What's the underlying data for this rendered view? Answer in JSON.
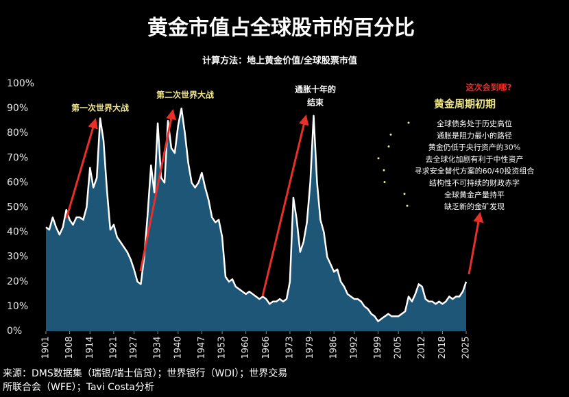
{
  "chart_data": {
    "type": "area",
    "title": "黄金市值占全球股市的百分比",
    "subtitle": "计算方法：地上黄金价值/全球股票市值",
    "x": [
      1901,
      1902,
      1903,
      1904,
      1905,
      1906,
      1907,
      1908,
      1909,
      1910,
      1911,
      1912,
      1913,
      1914,
      1915,
      1916,
      1917,
      1918,
      1919,
      1920,
      1921,
      1922,
      1923,
      1924,
      1925,
      1926,
      1927,
      1928,
      1929,
      1930,
      1931,
      1932,
      1933,
      1934,
      1935,
      1936,
      1937,
      1938,
      1939,
      1940,
      1941,
      1942,
      1943,
      1944,
      1945,
      1946,
      1947,
      1948,
      1949,
      1950,
      1951,
      1952,
      1953,
      1954,
      1955,
      1956,
      1957,
      1958,
      1959,
      1960,
      1961,
      1962,
      1963,
      1964,
      1965,
      1966,
      1967,
      1968,
      1969,
      1970,
      1971,
      1972,
      1973,
      1974,
      1975,
      1976,
      1977,
      1978,
      1979,
      1980,
      1981,
      1982,
      1983,
      1984,
      1985,
      1986,
      1987,
      1988,
      1989,
      1990,
      1991,
      1992,
      1993,
      1994,
      1995,
      1996,
      1997,
      1998,
      1999,
      2000,
      2001,
      2002,
      2003,
      2004,
      2005,
      2006,
      2007,
      2008,
      2009,
      2010,
      2011,
      2012,
      2013,
      2014,
      2015,
      2016,
      2017,
      2018,
      2019,
      2020,
      2021,
      2022,
      2023,
      2024,
      2025
    ],
    "values": [
      42,
      41,
      46,
      42,
      39,
      42,
      49,
      45,
      43,
      46,
      46,
      45,
      50,
      66,
      58,
      62,
      86,
      77,
      57,
      41,
      43,
      38,
      36,
      34,
      32,
      29,
      25,
      20,
      19,
      30,
      47,
      67,
      56,
      84,
      62,
      60,
      85,
      74,
      72,
      83,
      90,
      80,
      68,
      60,
      58,
      60,
      64,
      58,
      53,
      46,
      44,
      45,
      38,
      22,
      20,
      21,
      18,
      17,
      16,
      15,
      16,
      15,
      14,
      13,
      14,
      13,
      11,
      12,
      12,
      13,
      12,
      13,
      20,
      54,
      45,
      32,
      36,
      44,
      60,
      87,
      60,
      45,
      40,
      30,
      27,
      24,
      25,
      20,
      18,
      15,
      14,
      13,
      13,
      12,
      10,
      9,
      7,
      6,
      4,
      5,
      6,
      7,
      6,
      6,
      6,
      7,
      8,
      14,
      12,
      15,
      19,
      18,
      13,
      12,
      12,
      11,
      12,
      11,
      12,
      14,
      13,
      14,
      14,
      16,
      20
    ],
    "fill_color": "#1d5677",
    "line_color": "#ffffff",
    "xlim": [
      1901,
      2025
    ],
    "xticks": [
      1901,
      1908,
      1914,
      1921,
      1927,
      1934,
      1940,
      1947,
      1953,
      1960,
      1966,
      1973,
      1979,
      1986,
      1992,
      1999,
      2005,
      2012,
      2018,
      2025
    ],
    "ylim": [
      0,
      100
    ],
    "yticks": [
      {
        "value": 0,
        "label": "0%"
      },
      {
        "value": 10,
        "label": "10%"
      },
      {
        "value": 20,
        "label": "20%"
      },
      {
        "value": 30,
        "label": "30%"
      },
      {
        "value": 40,
        "label": "40%"
      },
      {
        "value": 50,
        "label": "50%"
      },
      {
        "value": 60,
        "label": "60%"
      },
      {
        "value": 70,
        "label": "70%"
      },
      {
        "value": 80,
        "label": "80%"
      },
      {
        "value": 90,
        "label": "90%"
      },
      {
        "value": 100,
        "label": "100%"
      }
    ],
    "annotations": [
      "第一次世界大战",
      "第二次世界大战",
      "通胀十年的",
      "结束",
      "这次会到哪?"
    ],
    "panel": {
      "title": "黄金周期初期",
      "items": [
        "全球债务处于历史高位",
        "通胀是阻力最小的路径",
        "黄金仍低于央行资产的30%",
        "去全球化加剧有利于中性资产",
        "寻求安全替代方案的60/40投资组合",
        "结构性不可持续的财政赤字",
        "全球黄金产量持平",
        "缺乏新的金矿发现"
      ]
    },
    "source": [
      "来源：DMS数据集（瑞银/瑞士信贷）；世界银行（WDI）；世界交易",
      "所联合会（WFE）；Tavi Costa分析"
    ]
  }
}
